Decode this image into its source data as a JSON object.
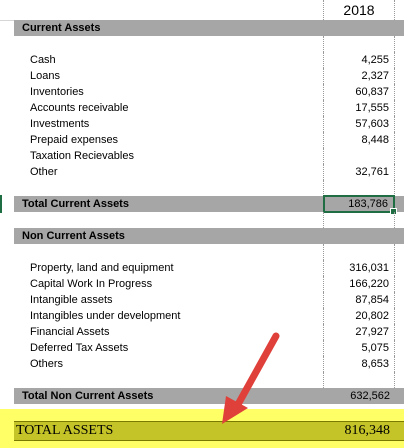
{
  "header": {
    "year": "2018"
  },
  "current_assets": {
    "title": "Current Assets",
    "items": [
      {
        "label": "Cash",
        "value": "4,255"
      },
      {
        "label": "Loans",
        "value": "2,327"
      },
      {
        "label": "Inventories",
        "value": "60,837"
      },
      {
        "label": "Accounts receivable",
        "value": "17,555"
      },
      {
        "label": "Investments",
        "value": "57,603"
      },
      {
        "label": "Prepaid expenses",
        "value": "8,448"
      },
      {
        "label": "Taxation Recievables",
        "value": ""
      },
      {
        "label": "Other",
        "value": "32,761"
      }
    ],
    "total_label": "Total Current Assets",
    "total_value": "183,786"
  },
  "non_current_assets": {
    "title": "Non Current Assets",
    "items": [
      {
        "label": "Property, land and equipment",
        "value": "316,031"
      },
      {
        "label": "Capital Work In Progress",
        "value": "166,220"
      },
      {
        "label": "Intangible assets",
        "value": "87,854"
      },
      {
        "label": "Intangibles under development",
        "value": "20,802"
      },
      {
        "label": "Financial Assets",
        "value": "27,927"
      },
      {
        "label": "Deferred Tax Assets",
        "value": "5,075"
      },
      {
        "label": "Others",
        "value": "8,653"
      }
    ],
    "total_label": "Total Non Current Assets",
    "total_value": "632,562"
  },
  "grand_total": {
    "label": "TOTAL ASSETS",
    "value": "816,348"
  },
  "colors": {
    "band": "#a6a6a6",
    "highlight": "#ffff66",
    "grand_row": "#c4c428",
    "arrow": "#e0403a",
    "selection": "#1f6e43"
  }
}
